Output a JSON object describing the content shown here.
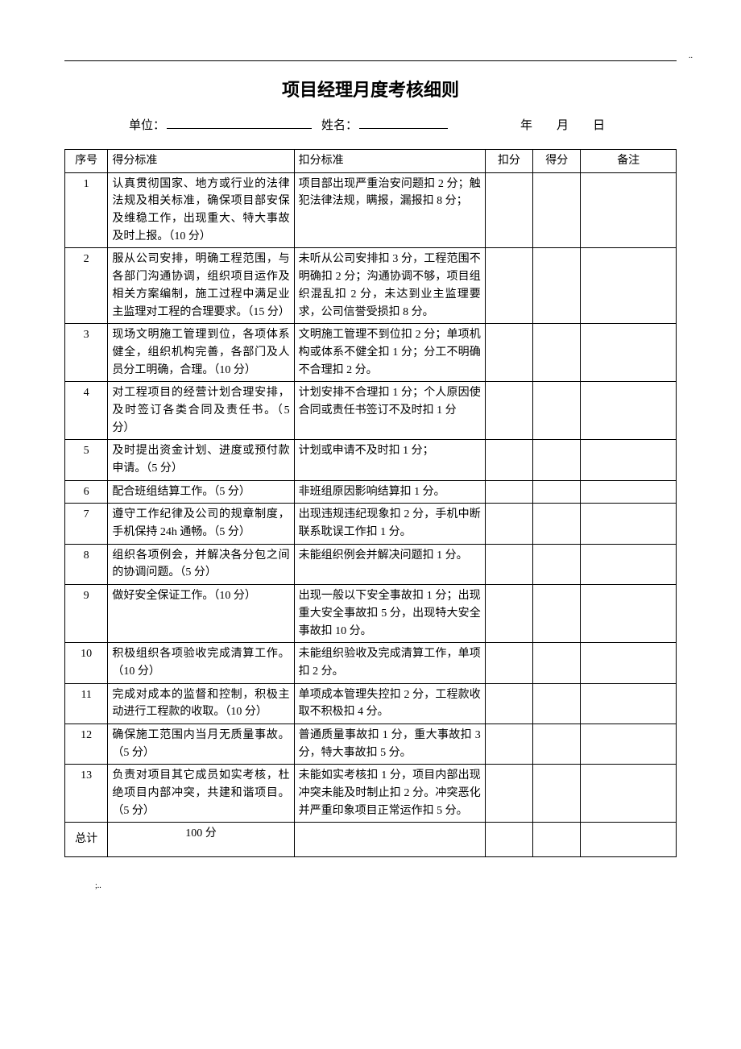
{
  "document": {
    "title": "项目经理月度考核细则",
    "unit_label": "单位：",
    "name_label": "姓名：",
    "date_year": "年",
    "date_month": "月",
    "date_day": "日",
    "footer_mark": ";.."
  },
  "table": {
    "headers": {
      "seq": "序号",
      "criteria": "得分标准",
      "deduct": "扣分标准",
      "deduct_score": "扣分",
      "score": "得分",
      "remark": "备注"
    },
    "rows": [
      {
        "seq": "1",
        "criteria": "认真贯彻国家、地方或行业的法律法规及相关标准，确保项目部安保及维稳工作，出现重大、特大事故及时上报。（10 分）",
        "deduct": "项目部出现严重治安问题扣 2 分；触犯法律法规，瞒报，漏报扣 8 分；"
      },
      {
        "seq": "2",
        "criteria": "服从公司安排，明确工程范围，与各部门沟通协调，组织项目运作及相关方案编制，施工过程中满足业主监理对工程的合理要求。（15 分）",
        "deduct": "未听从公司安排扣 3 分，工程范围不明确扣 2 分；沟通协调不够，项目组织混乱扣 2 分，未达到业主监理要求，公司信誉受损扣 8 分。"
      },
      {
        "seq": "3",
        "criteria": "现场文明施工管理到位，各项体系健全，组织机构完善，各部门及人员分工明确，合理。（10 分）",
        "deduct": "文明施工管理不到位扣 2 分；单项机构或体系不健全扣 1 分；分工不明确不合理扣 2 分。"
      },
      {
        "seq": "4",
        "criteria": "对工程项目的经营计划合理安排，及时签订各类合同及责任书。（5 分）",
        "deduct": "计划安排不合理扣 1 分；个人原因使合同或责任书签订不及时扣 1 分"
      },
      {
        "seq": "5",
        "criteria": "及时提出资金计划、进度或预付款申请。（5 分）",
        "deduct": "计划或申请不及时扣 1 分；"
      },
      {
        "seq": "6",
        "criteria": "配合班组结算工作。（5 分）",
        "deduct": "非班组原因影响结算扣 1 分。"
      },
      {
        "seq": "7",
        "criteria": "遵守工作纪律及公司的规章制度，手机保持 24h 通畅。（5 分）",
        "deduct": "出现违规违纪现象扣 2 分，手机中断联系耽误工作扣 1 分。"
      },
      {
        "seq": "8",
        "criteria": "组织各项例会，并解决各分包之间的协调问题。（5 分）",
        "deduct": "未能组织例会并解决问题扣 1 分。"
      },
      {
        "seq": "9",
        "criteria": "做好安全保证工作。（10 分）",
        "deduct": "出现一般以下安全事故扣 1 分；出现重大安全事故扣 5 分，出现特大安全事故扣 10 分。"
      },
      {
        "seq": "10",
        "criteria": "积极组织各项验收完成清算工作。（10 分）",
        "deduct": "未能组织验收及完成清算工作，单项扣 2 分。"
      },
      {
        "seq": "11",
        "criteria": "完成对成本的监督和控制，积极主动进行工程款的收取。（10 分）",
        "deduct": "单项成本管理失控扣 2 分，工程款收取不积极扣 4 分。"
      },
      {
        "seq": "12",
        "criteria": "确保施工范围内当月无质量事故。（5 分）",
        "deduct": "普通质量事故扣 1 分，重大事故扣 3 分，特大事故扣 5 分。"
      },
      {
        "seq": "13",
        "criteria": "负责对项目其它成员如实考核，杜绝项目内部冲突，共建和谐项目。（5 分）",
        "deduct": "未能如实考核扣 1 分，项目内部出现冲突未能及时制止扣 2 分。冲突恶化并严重印象项目正常运作扣 5 分。"
      }
    ],
    "total": {
      "label": "总计",
      "value": "100 分"
    }
  },
  "styling": {
    "background_color": "#ffffff",
    "text_color": "#000000",
    "border_color": "#000000",
    "title_fontsize": 22,
    "body_fontsize": 14,
    "form_fontsize": 15,
    "line_height": 1.55,
    "col_widths": {
      "seq": 45,
      "criteria": 195,
      "deduct": 200,
      "deductscore": 50,
      "score": 50,
      "remark": 100
    }
  }
}
